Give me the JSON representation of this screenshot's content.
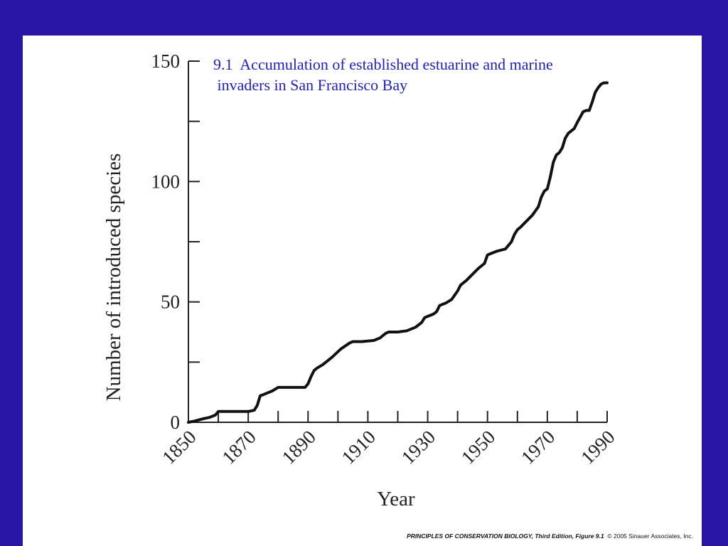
{
  "slide": {
    "title_line1": "9.1  Accumulation of established estuarine and marine",
    "title_line2": " invaders in San Francisco Bay",
    "credit_main": "PRINCIPLES OF CONSERVATION BIOLOGY, Third Edition, Figure 9.1",
    "credit_copyright": "© 2005 Sinauer Associates, Inc."
  },
  "colors": {
    "background": "#2a16a6",
    "slide": "#ffffff",
    "title": "#1f1fbf",
    "line": "#111111"
  },
  "chart_data": {
    "type": "line",
    "title": "9.1  Accumulation of established estuarine and marine invaders in San Francisco Bay",
    "xlabel": "Year",
    "ylabel": "Number of introduced species",
    "xlim": [
      1850,
      1990
    ],
    "ylim": [
      0,
      150
    ],
    "x_ticks": [
      1850,
      1870,
      1890,
      1910,
      1930,
      1950,
      1970,
      1990
    ],
    "x_tick_labels": [
      "1850",
      "1870",
      "1890",
      "1910",
      "1930",
      "1950",
      "1970",
      "1990"
    ],
    "x_minor_ticks": [
      1860,
      1880,
      1900,
      1920,
      1940,
      1960,
      1980
    ],
    "y_ticks": [
      0,
      50,
      100,
      150
    ],
    "y_tick_labels": [
      "0",
      "50",
      "100",
      "150"
    ],
    "y_minor_ticks": [
      25,
      75,
      125
    ],
    "grid": false,
    "series": [
      {
        "x": [
          1850,
          1852,
          1855,
          1857,
          1858,
          1859,
          1860,
          1862,
          1866,
          1870,
          1872,
          1873,
          1874,
          1875,
          1877,
          1878,
          1880,
          1883,
          1886,
          1889,
          1890,
          1891,
          1892,
          1893,
          1895,
          1898,
          1901,
          1904,
          1905,
          1908,
          1912,
          1914,
          1916,
          1917,
          1920,
          1923,
          1926,
          1928,
          1929,
          1930,
          1932,
          1933,
          1934,
          1936,
          1938,
          1940,
          1941,
          1943,
          1945,
          1947,
          1949,
          1950,
          1951,
          1953,
          1956,
          1958,
          1959,
          1960,
          1961,
          1963,
          1965,
          1967,
          1968,
          1969,
          1970,
          1971,
          1972,
          1973,
          1974,
          1975,
          1976,
          1977,
          1978,
          1979,
          1980,
          1982,
          1983,
          1984,
          1985,
          1986,
          1987,
          1988,
          1989,
          1990
        ],
        "y": [
          0,
          0.5,
          1.5,
          2,
          2.5,
          3,
          4.5,
          4.5,
          4.5,
          4.5,
          5,
          7,
          11,
          11.5,
          12.5,
          13,
          14.5,
          14.5,
          14.5,
          14.5,
          16,
          19,
          21.5,
          22.5,
          24,
          27,
          30.5,
          33,
          33.5,
          33.5,
          34,
          35,
          37,
          37.5,
          37.5,
          38,
          39.5,
          41.5,
          43.5,
          44,
          45,
          46,
          48.5,
          49.5,
          51,
          54.5,
          57,
          59,
          61.5,
          64,
          66,
          69.5,
          70,
          71,
          72,
          75,
          78,
          80,
          81,
          83.5,
          86,
          89.5,
          93.5,
          96,
          97,
          102,
          108,
          111,
          112,
          114,
          118,
          120,
          121,
          122,
          124.5,
          129,
          129.5,
          129.5,
          133,
          137,
          139,
          140.5,
          141,
          141
        ]
      }
    ]
  }
}
